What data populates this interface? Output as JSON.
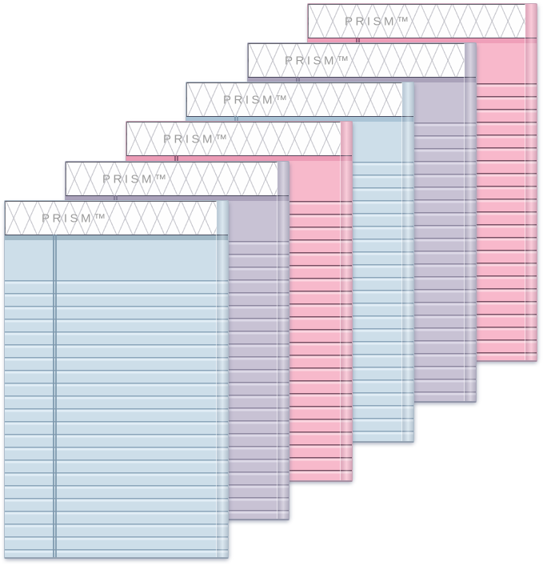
{
  "scene": {
    "description": "Product photograph of six TOPS PRISM pastel ruled writing pads overlapped in a cascade from front-left to back-right",
    "background_color": "#ffffff",
    "pad_count": 6
  },
  "brand": {
    "logo_text": "PRISM™",
    "logo_color": "#9a9a9a"
  },
  "pads": [
    {
      "position": "front",
      "color_name": "pastel blue",
      "logo_text": "PRISM™",
      "colors": {
        "body": "#cddee9",
        "line": "#8ba5ba",
        "highlight": "#e2eef6",
        "strip": "#a0b8c6",
        "margin": "#7d98ad"
      }
    },
    {
      "position": "second",
      "color_name": "pastel orchid",
      "logo_text": "PRISM™",
      "colors": {
        "body": "#c8c2d4",
        "line": "#8e88a0",
        "highlight": "#ddd9e7",
        "strip": "#aaa2ba",
        "margin": "#7f7893"
      }
    },
    {
      "position": "third",
      "color_name": "pastel pink",
      "logo_text": "PRISM™",
      "colors": {
        "body": "#f7b9cb",
        "line": "#7a4f63",
        "highlight": "#fbd6e0",
        "strip": "#ec9cb6",
        "margin": "#8a5570"
      }
    },
    {
      "position": "fourth",
      "color_name": "pastel blue",
      "logo_text": "PRISM™",
      "colors": {
        "body": "#cddee9",
        "line": "#8ba5ba",
        "highlight": "#e2eef6",
        "strip": "#aac4d6",
        "margin": "#7d98ad"
      }
    },
    {
      "position": "fifth",
      "color_name": "pastel orchid",
      "logo_text": "PRISM™",
      "colors": {
        "body": "#c8c2d4",
        "line": "#8e88a0",
        "highlight": "#ddd9e7",
        "strip": "#aaa2ba",
        "margin": "#7f7893"
      }
    },
    {
      "position": "back",
      "color_name": "pastel pink",
      "logo_text": "PRISM™",
      "colors": {
        "body": "#f8b8cb",
        "line": "#7a4f63",
        "highlight": "#fbd6e0",
        "strip": "#ef9fb9",
        "margin": "#8a5570"
      }
    }
  ]
}
